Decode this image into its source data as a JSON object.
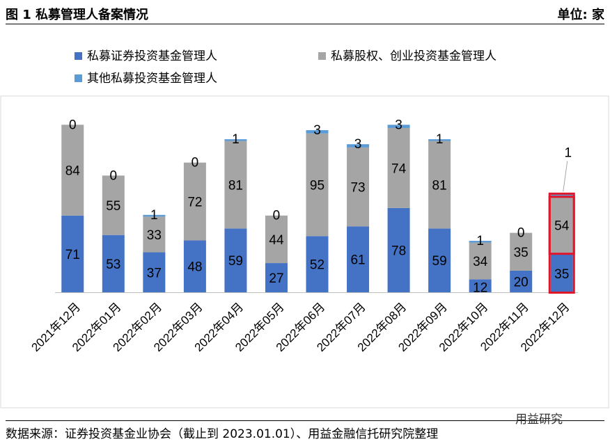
{
  "header": {
    "title": "图 1 私募管理人备案情况",
    "unit": "单位: 家"
  },
  "footer": {
    "source": "数据来源：证券投资基金业协会（截止到 2023.01.01）、用益金融信托研究院整理",
    "watermark": "用益研究"
  },
  "chart_data": {
    "type": "bar",
    "stacked": true,
    "categories": [
      "2021年12月",
      "2022年01月",
      "2022年02月",
      "2022年03月",
      "2022年04月",
      "2022年05月",
      "2022年06月",
      "2022年07月",
      "2022年08月",
      "2022年09月",
      "2022年10月",
      "2022年11月",
      "2022年12月"
    ],
    "series": [
      {
        "name": "私募证券投资基金管理人",
        "color": "#4472C4",
        "values": [
          71,
          53,
          37,
          48,
          59,
          27,
          52,
          61,
          78,
          59,
          12,
          20,
          35
        ]
      },
      {
        "name": "私募股权、创业投资基金管理人",
        "color": "#A5A5A5",
        "values": [
          84,
          55,
          33,
          72,
          81,
          44,
          95,
          73,
          74,
          81,
          34,
          35,
          54
        ]
      },
      {
        "name": "其他私募投资基金管理人",
        "color": "#5B9BD5",
        "values": [
          0,
          0,
          1,
          0,
          1,
          0,
          3,
          3,
          3,
          1,
          1,
          0,
          1
        ]
      }
    ],
    "ylim": [
      0,
      185
    ],
    "grid": false,
    "legend_position": "top",
    "highlight": {
      "category": "2022年12月",
      "color": "#E0162B"
    }
  }
}
